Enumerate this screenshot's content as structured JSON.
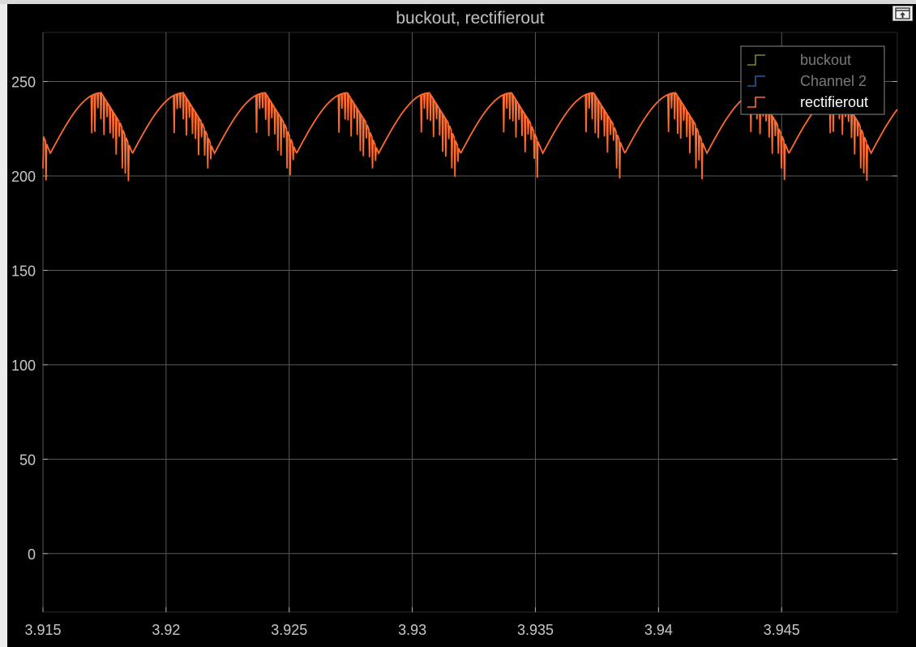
{
  "window": {
    "undock_icon": "undock-icon"
  },
  "colors": {
    "background": "#000000",
    "grid": "#5a5a5a",
    "axis_text": "#c8c8c8",
    "title_text": "#c0c0c0",
    "buckout": "#6f8f2a",
    "channel2": "#1f5f9a",
    "rectifierout": "#ff6b2c"
  },
  "chart_data": {
    "type": "line",
    "title": "buckout, rectifierout",
    "xlabel": "",
    "ylabel": "",
    "xlim": [
      3.915,
      3.9497
    ],
    "ylim": [
      -31,
      276
    ],
    "x_ticks": [
      "3.915",
      "3.92",
      "3.925",
      "3.93",
      "3.935",
      "3.94",
      "3.945"
    ],
    "y_ticks": [
      "0",
      "50",
      "100",
      "150",
      "200",
      "250"
    ],
    "grid": true,
    "legend_position": "top-right",
    "legend": [
      "buckout",
      "Channel 2",
      "rectifierout"
    ],
    "series": [
      {
        "name": "rectifierout",
        "period": 0.003333,
        "first_trough_time": 3.9153,
        "trough_value": 212,
        "peak_value": 244,
        "sag_min": 228,
        "spike_min": 204,
        "description_of_shape": "rectified ripple with switching notches"
      }
    ]
  }
}
